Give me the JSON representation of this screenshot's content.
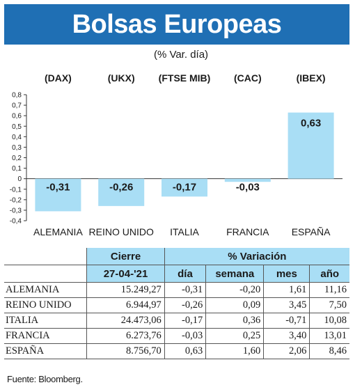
{
  "header": {
    "title": "Bolsas Europeas",
    "subtitle": "(% Var. día)"
  },
  "chart_data": {
    "type": "bar",
    "indices": [
      "(DAX)",
      "(UKX)",
      "(FTSE MIB)",
      "(CAC)",
      "(IBEX)"
    ],
    "categories": [
      "ALEMANIA",
      "REINO UNIDO",
      "ITALIA",
      "FRANCIA",
      "ESPAÑA"
    ],
    "values": [
      -0.31,
      -0.26,
      -0.17,
      -0.03,
      0.63
    ],
    "value_labels": [
      "-0,31",
      "-0,26",
      "-0,17",
      "-0,03",
      "0,63"
    ],
    "ylim": [
      -0.4,
      0.8
    ],
    "yticks": [
      -0.4,
      -0.3,
      -0.2,
      -0.1,
      0,
      0.1,
      0.2,
      0.3,
      0.4,
      0.5,
      0.6,
      0.7,
      0.8
    ],
    "ytick_labels": [
      "-0,4",
      "-0,3",
      "-0,2",
      "-0,1",
      "0",
      "0,1",
      "0,2",
      "0,3",
      "0,4",
      "0,5",
      "0,6",
      "0,7",
      "0,8"
    ],
    "bar_color": "#a9def5",
    "grid": false
  },
  "table": {
    "group_headers": {
      "cierre": "Cierre",
      "variacion": "% Variación"
    },
    "sub_headers": [
      "27-04-'21",
      "día",
      "semana",
      "mes",
      "año"
    ],
    "rows": [
      {
        "country": "ALEMANIA",
        "cierre": "15.249,27",
        "dia": "-0,31",
        "semana": "-0,20",
        "mes": "1,61",
        "anio": "11,16"
      },
      {
        "country": "REINO UNIDO",
        "cierre": "6.944,97",
        "dia": "-0,26",
        "semana": "0,09",
        "mes": "3,45",
        "anio": "7,50"
      },
      {
        "country": "ITALIA",
        "cierre": "24.473,06",
        "dia": "-0,17",
        "semana": "0,36",
        "mes": "-0,71",
        "anio": "10,08"
      },
      {
        "country": "FRANCIA",
        "cierre": "6.273,76",
        "dia": "-0,03",
        "semana": "0,25",
        "mes": "3,40",
        "anio": "13,01"
      },
      {
        "country": "ESPAÑA",
        "cierre": "8.756,70",
        "dia": "0,63",
        "semana": "1,60",
        "mes": "2,06",
        "anio": "8,46"
      }
    ]
  },
  "source": "Fuente: Bloomberg.",
  "colors": {
    "title_bg": "#1f6fb4",
    "title_text": "#ffffff",
    "accent_light": "#a9def5"
  }
}
